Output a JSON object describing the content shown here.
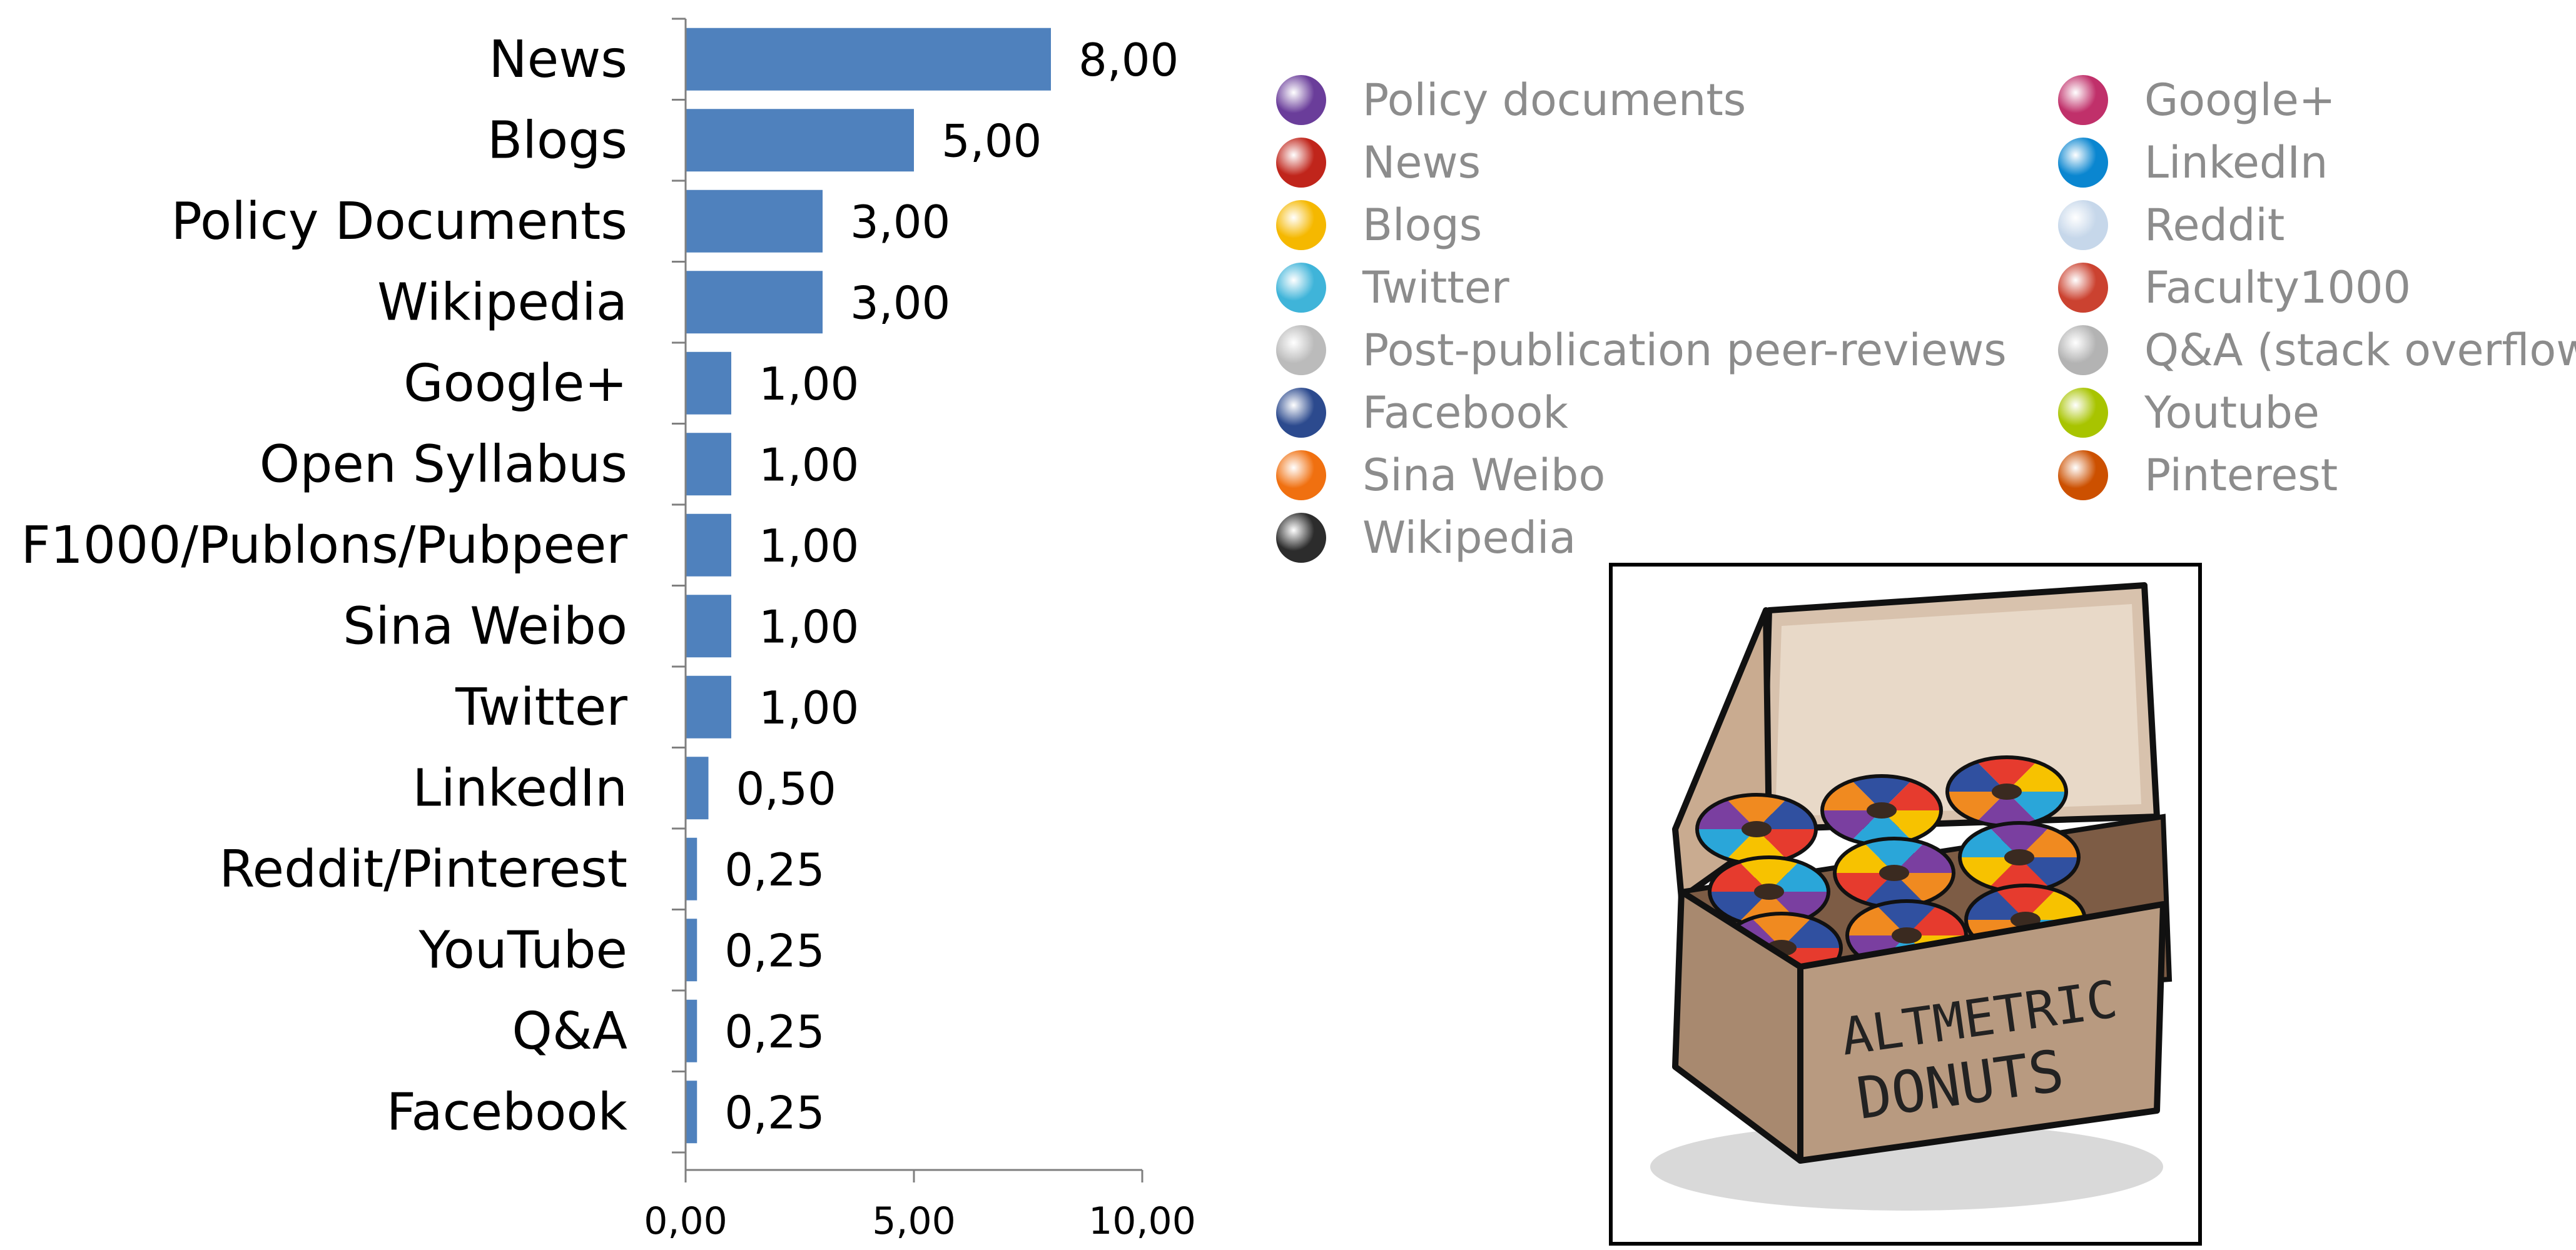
{
  "chart_data": {
    "type": "bar",
    "orientation": "horizontal",
    "categories": [
      "News",
      "Blogs",
      "Policy Documents",
      "Wikipedia",
      "Google+",
      "Open Syllabus",
      "F1000/Publons/Pubpeer",
      "Sina Weibo",
      "Twitter",
      "LinkedIn",
      "Reddit/Pinterest",
      "YouTube",
      "Q&A",
      "Facebook"
    ],
    "values": [
      8.0,
      5.0,
      3.0,
      3.0,
      1.0,
      1.0,
      1.0,
      1.0,
      1.0,
      0.5,
      0.25,
      0.25,
      0.25,
      0.25
    ],
    "value_labels": [
      "8,00",
      "5,00",
      "3,00",
      "3,00",
      "1,00",
      "1,00",
      "1,00",
      "1,00",
      "1,00",
      "0,50",
      "0,25",
      "0,25",
      "0,25",
      "0,25"
    ],
    "xlim": [
      0,
      10
    ],
    "x_ticks": [
      0,
      5,
      10
    ],
    "x_tick_labels": [
      "0,00",
      "5,00",
      "10,00"
    ],
    "bar_color": "#4f81bd",
    "grid": false
  },
  "legend": {
    "items": [
      {
        "label": "Policy documents",
        "color": "#6a3d9a"
      },
      {
        "label": "News",
        "color": "#c0251b"
      },
      {
        "label": "Blogs",
        "color": "#f5b800"
      },
      {
        "label": "Twitter",
        "color": "#3fb4d9"
      },
      {
        "label": "Post-publication peer-reviews",
        "color": "#bbbbbb"
      },
      {
        "label": "Facebook",
        "color": "#2c4a8e"
      },
      {
        "label": "Sina Weibo",
        "color": "#f07010"
      },
      {
        "label": "Wikipedia",
        "color": "#2c2c2c"
      },
      {
        "label": "Google+",
        "color": "#c0306a"
      },
      {
        "label": "LinkedIn",
        "color": "#0a86d0"
      },
      {
        "label": "Reddit",
        "color": "#c6d7ea"
      },
      {
        "label": "Faculty1000",
        "color": "#cb4230"
      },
      {
        "label": "Q&A (stack overflow)",
        "color": "#b3b3b3"
      },
      {
        "label": "Youtube",
        "color": "#a8c400"
      },
      {
        "label": "Pinterest",
        "color": "#cc5000"
      }
    ]
  },
  "illustration": {
    "box_text_line1": "ALTMETRIC",
    "box_text_line2": "DONUTS",
    "box_color": "#b89a80",
    "donut_colors": [
      "#e63b2e",
      "#f7c200",
      "#2aa6d9",
      "#7a3fa0",
      "#f08a20",
      "#3050a0"
    ]
  }
}
